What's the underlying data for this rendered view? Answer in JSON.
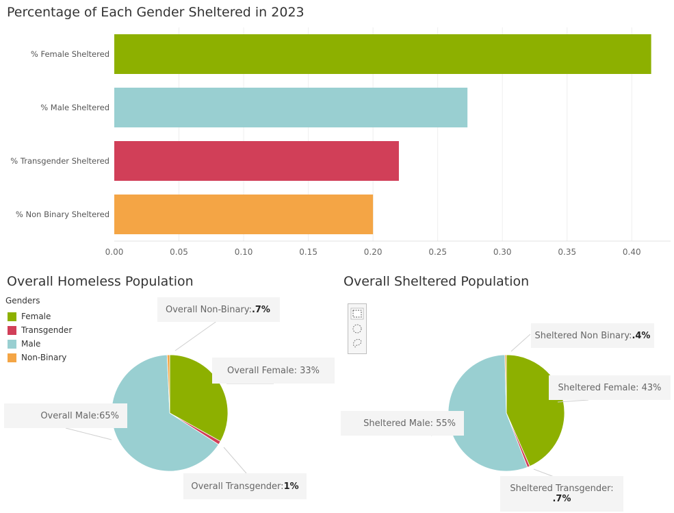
{
  "bar_section": {
    "title": "Percentage of Each Gender Sheltered in 2023"
  },
  "homeless_section": {
    "title": "Overall Homeless Population",
    "legend_title": "Genders",
    "legend": [
      {
        "label": "Female",
        "color": "#8db000"
      },
      {
        "label": "Transgender",
        "color": "#d13f58"
      },
      {
        "label": "Male",
        "color": "#99cfd1"
      },
      {
        "label": "Non-Binary",
        "color": "#f4a545"
      }
    ],
    "callouts": {
      "non_binary": {
        "label": "Overall Non-Binary: ",
        "value": ".7%"
      },
      "female": {
        "label": "Overall Female: 33%"
      },
      "male": {
        "label": "Overall Male:65%"
      },
      "transgender": {
        "label": "Overall Transgender: ",
        "value": "1%"
      }
    }
  },
  "sheltered_section": {
    "title": "Overall Sheltered Population",
    "callouts": {
      "non_binary": {
        "label": "Sheltered Non Binary: ",
        "value": ".4%"
      },
      "female": {
        "label": "Sheltered Female: 43%"
      },
      "male": {
        "label": "Sheltered Male: 55%"
      },
      "transgender": {
        "label": "Sheltered Transgender:",
        "value": ".7%"
      }
    }
  },
  "selection_tools": [
    "rectangle-select-icon",
    "radial-select-icon",
    "lasso-select-icon"
  ],
  "chart_data": [
    {
      "type": "bar",
      "orientation": "horizontal",
      "title": "Percentage of Each Gender Sheltered in 2023",
      "categories": [
        "% Female Sheltered",
        "% Male Sheltered",
        "% Transgender Sheltered",
        "% Non Binary Sheltered"
      ],
      "values": [
        0.415,
        0.273,
        0.22,
        0.2
      ],
      "colors": [
        "#8db000",
        "#99cfd1",
        "#d13f58",
        "#f4a545"
      ],
      "xlim": [
        0,
        0.43
      ],
      "xticks": [
        "0.00",
        "0.05",
        "0.10",
        "0.15",
        "0.20",
        "0.25",
        "0.30",
        "0.35",
        "0.40"
      ],
      "xtick_values": [
        0,
        0.05,
        0.1,
        0.15,
        0.2,
        0.25,
        0.3,
        0.35,
        0.4
      ],
      "grid": true
    },
    {
      "type": "pie",
      "title": "Overall Homeless Population",
      "categories": [
        "Female",
        "Transgender",
        "Male",
        "Non-Binary"
      ],
      "values": [
        33,
        1,
        65,
        0.7
      ],
      "colors": [
        "#8db000",
        "#d13f58",
        "#99cfd1",
        "#f4a545"
      ]
    },
    {
      "type": "pie",
      "title": "Overall Sheltered Population",
      "categories": [
        "Female",
        "Transgender",
        "Male",
        "Non-Binary"
      ],
      "values": [
        43,
        0.7,
        55,
        0.4
      ],
      "colors": [
        "#8db000",
        "#d13f58",
        "#99cfd1",
        "#f4a545"
      ]
    }
  ]
}
